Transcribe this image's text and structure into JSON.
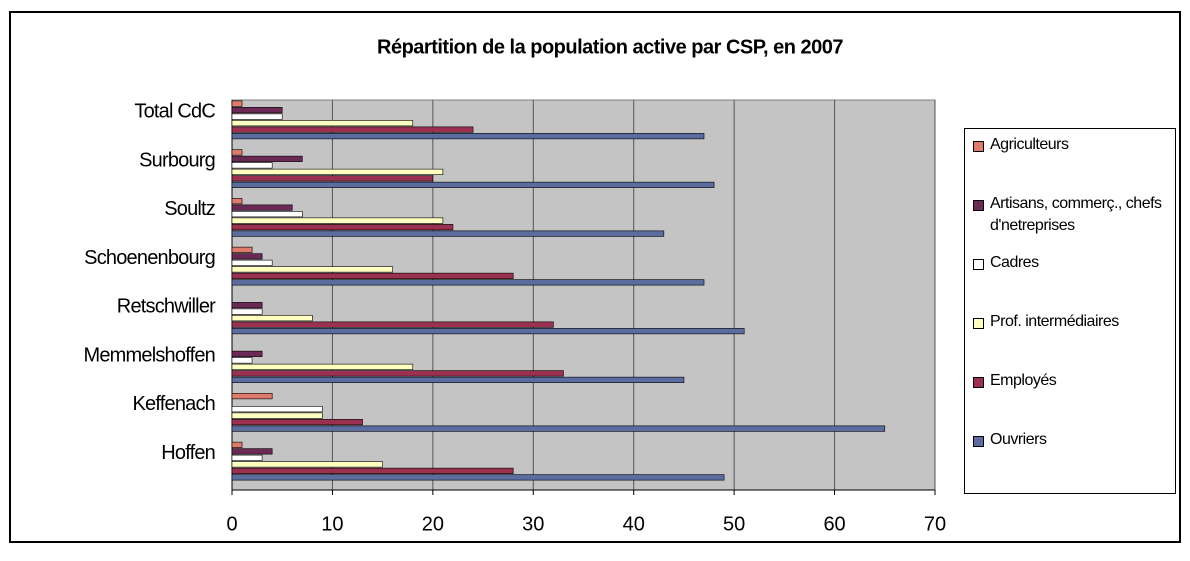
{
  "chart_data": {
    "type": "hbar",
    "title": "Répartition de la population active par CSP, en 2007",
    "categories": [
      "Hoffen",
      "Keffenach",
      "Memmelshoffen",
      "Retschwiller",
      "Schoenenbourg",
      "Soultz",
      "Surbourg",
      "Total CdC"
    ],
    "series": [
      {
        "name": "Agriculteurs",
        "color": "#e07a6a",
        "values": [
          1,
          4,
          0,
          0,
          2,
          1,
          1,
          1
        ]
      },
      {
        "name": "Artisans, commerç., chefs d'netreprises",
        "color": "#6b2a55",
        "values": [
          4,
          0,
          3,
          3,
          3,
          6,
          7,
          5
        ]
      },
      {
        "name": "Cadres",
        "color": "#ffffff",
        "values": [
          3,
          9,
          2,
          3,
          4,
          7,
          4,
          5
        ]
      },
      {
        "name": "Prof. intermédiaires",
        "color": "#ffffc0",
        "values": [
          15,
          9,
          18,
          8,
          16,
          21,
          21,
          18
        ]
      },
      {
        "name": "Employés",
        "color": "#9c3050",
        "values": [
          28,
          13,
          33,
          32,
          28,
          22,
          20,
          24
        ]
      },
      {
        "name": "Ouvriers",
        "color": "#5a6d9e",
        "values": [
          49,
          65,
          45,
          51,
          47,
          43,
          48,
          47
        ]
      }
    ],
    "xlim": [
      0,
      70
    ],
    "xticks": [
      0,
      10,
      20,
      30,
      40,
      50,
      60,
      70
    ],
    "grid": true
  }
}
